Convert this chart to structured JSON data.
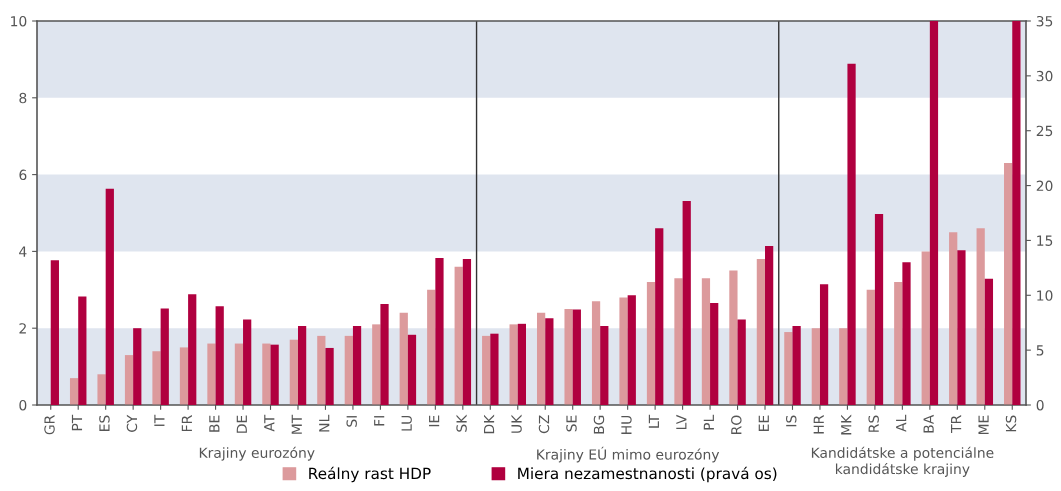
{
  "chart_data": {
    "type": "bar",
    "categories": [
      "GR",
      "PT",
      "ES",
      "CY",
      "IT",
      "FR",
      "BE",
      "DE",
      "AT",
      "MT",
      "NL",
      "SI",
      "FI",
      "LU",
      "IE",
      "SK",
      "DK",
      "UK",
      "CZ",
      "SE",
      "BG",
      "HU",
      "LT",
      "LV",
      "PL",
      "RO",
      "EE",
      "IS",
      "HR",
      "MK",
      "RS",
      "AL",
      "BA",
      "TR",
      "ME",
      "KS"
    ],
    "series": [
      {
        "name": "Reálny rast HDP",
        "color": "#dc9a9c",
        "values": [
          null,
          0.7,
          0.8,
          1.3,
          1.4,
          1.5,
          1.6,
          1.6,
          1.6,
          1.7,
          1.8,
          1.8,
          2.1,
          2.4,
          3.0,
          3.6,
          1.8,
          2.1,
          2.4,
          2.5,
          2.7,
          2.8,
          3.2,
          3.3,
          3.3,
          3.5,
          3.8,
          1.9,
          2.0,
          2.0,
          3.0,
          3.2,
          4.0,
          4.5,
          4.6,
          6.3
        ]
      },
      {
        "name": "Miera nezamestnanosti (pravá os)",
        "color": "#b0003f",
        "axis": "y2",
        "values": [
          13.2,
          9.9,
          19.7,
          7.0,
          8.8,
          10.1,
          9.0,
          7.8,
          5.5,
          7.2,
          5.2,
          7.2,
          9.2,
          6.4,
          13.4,
          13.3,
          6.5,
          7.4,
          7.9,
          8.7,
          7.2,
          10.0,
          16.1,
          18.6,
          9.3,
          7.8,
          14.5,
          7.2,
          11.0,
          31.1,
          17.4,
          13.0,
          35,
          14.1,
          11.5,
          35
        ]
      }
    ],
    "ylim": [
      0,
      10
    ],
    "yticks": [
      0,
      2,
      4,
      6,
      8,
      10
    ],
    "y2lim": [
      0,
      35
    ],
    "y2ticks": [
      0,
      5,
      10,
      15,
      20,
      25,
      30,
      35
    ],
    "bands": [
      {
        "axis": "y",
        "from": 0,
        "to": 2,
        "color": "#dfe5ef"
      },
      {
        "axis": "y",
        "from": 4,
        "to": 6,
        "color": "#dfe5ef"
      },
      {
        "axis": "y",
        "from": 8,
        "to": 10,
        "color": "#dfe5ef"
      }
    ],
    "annotations": [
      "Krajiny eurozóny",
      "Krajiny EÚ mimo eurozóny",
      "Kandidátske a potenciálne\nkandidátske krajiny"
    ],
    "grid": false,
    "legend": "bottom"
  }
}
